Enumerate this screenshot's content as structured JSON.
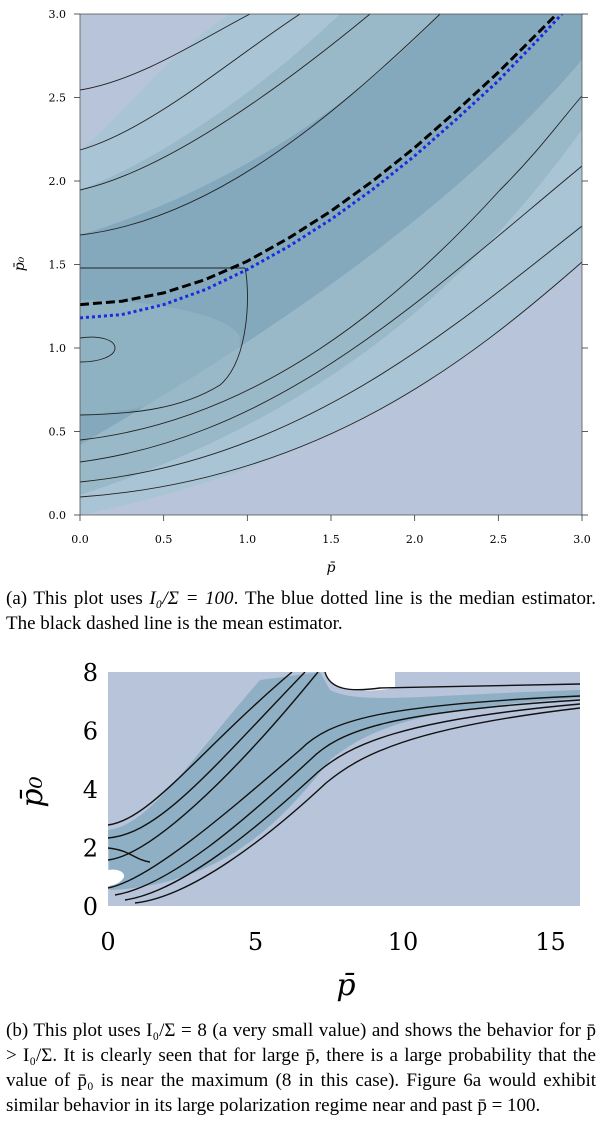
{
  "figure_a": {
    "caption": {
      "lead": "(a) This plot uses ",
      "math": "I₀/Σ = 100",
      "rest": ". The blue dotted line is the median estimator. The black dashed line is the mean estimator."
    }
  },
  "figure_b": {
    "caption": {
      "text": "(b) This plot uses I₀/Σ = 8 (a very small value) and shows the behavior for p̄ > I₀/Σ. It is clearly seen that for large p̄, there is a large probability that the value of p̄₀ is near the maximum (8 in this case). Figure 6a would exhibit similar behavior in its large polarization regime near and past p̄ = 100."
    }
  },
  "chart_data": [
    {
      "type": "heatmap",
      "subtype": "contour",
      "title": "",
      "xlabel": "p̄",
      "ylabel": "p̄₀",
      "xlim": [
        0.0,
        3.0
      ],
      "ylim": [
        0.0,
        3.0
      ],
      "x_ticks": [
        "0.0",
        "0.5",
        "1.0",
        "1.5",
        "2.0",
        "2.5",
        "3.0"
      ],
      "y_ticks": [
        "0.0",
        "0.5",
        "1.0",
        "1.5",
        "2.0",
        "2.5",
        "3.0"
      ],
      "grid": false,
      "legend": "none",
      "fill_colors": [
        "#b8c4da",
        "#a9c4d4",
        "#9ab9c8",
        "#8fb2c2",
        "#84a9bd",
        "#7ca2b8"
      ],
      "background_color": "#b8c4da",
      "contour_levels": 7,
      "series": [
        {
          "name": "mean estimator",
          "style": "black-dashed",
          "color": "#000000",
          "x": [
            0.0,
            0.25,
            0.5,
            0.75,
            1.0,
            1.25,
            1.5,
            1.75,
            2.0,
            2.25,
            2.5,
            2.75,
            2.85
          ],
          "y": [
            1.26,
            1.28,
            1.33,
            1.41,
            1.52,
            1.66,
            1.82,
            2.0,
            2.2,
            2.42,
            2.65,
            2.9,
            3.0
          ]
        },
        {
          "name": "median estimator",
          "style": "blue-dotted",
          "color": "#1a2be0",
          "x": [
            0.0,
            0.25,
            0.5,
            0.75,
            1.0,
            1.25,
            1.5,
            1.75,
            2.0,
            2.25,
            2.5,
            2.75,
            2.88
          ],
          "y": [
            1.18,
            1.2,
            1.26,
            1.35,
            1.47,
            1.61,
            1.77,
            1.95,
            2.15,
            2.37,
            2.6,
            2.86,
            3.0
          ]
        }
      ]
    },
    {
      "type": "heatmap",
      "subtype": "contour",
      "title": "",
      "xlabel": "p̄",
      "ylabel": "p̄₀",
      "xlim": [
        0,
        16
      ],
      "ylim": [
        0,
        8
      ],
      "x_ticks": [
        "0",
        "5",
        "10",
        "15"
      ],
      "y_ticks": [
        "0",
        "2",
        "4",
        "6",
        "8"
      ],
      "grid": false,
      "legend": "none",
      "background_color": "#b8c4da",
      "band_color": "#8fb0c4",
      "contour_levels": 7
    }
  ]
}
